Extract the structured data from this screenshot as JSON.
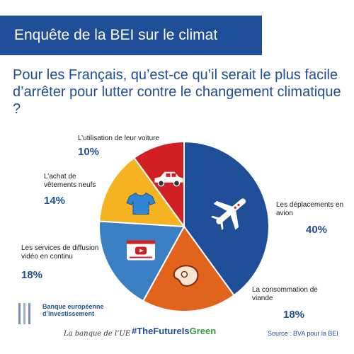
{
  "header": {
    "title": "Enquête de la BEI sur le climat"
  },
  "question": "Pour les Français, qu’est-ce qu’il serait le plus facile d’arrêter pour lutter contre le changement climatique ?",
  "chart_data": {
    "type": "pie",
    "title": "",
    "slices": [
      {
        "label": "Les déplacements en avion",
        "value": 40,
        "display": "40%",
        "color": "#1f4e99",
        "icon": "airplane-icon"
      },
      {
        "label": "La consommation de viande",
        "value": 18,
        "display": "18%",
        "color": "#e2641c",
        "icon": "steak-icon"
      },
      {
        "label": "Les services de diffusion vidéo en continu",
        "value": 18,
        "display": "18%",
        "color": "#3a7ec4",
        "icon": "video-player-icon"
      },
      {
        "label": "L’achat de vêtements neufs",
        "value": 14,
        "display": "14%",
        "color": "#f6b321",
        "icon": "tshirt-icon"
      },
      {
        "label": "L’utilisation de leur voiture",
        "value": 10,
        "display": "10%",
        "color": "#d21f23",
        "icon": "car-icon"
      }
    ]
  },
  "footer": {
    "bank_name": "Banque européenne d’investissement",
    "tagline": "La banque de l’UE",
    "hashtag_main": "#TheFutureIs",
    "hashtag_accent": "Green",
    "source": "Source : BVA pour la BEI"
  }
}
